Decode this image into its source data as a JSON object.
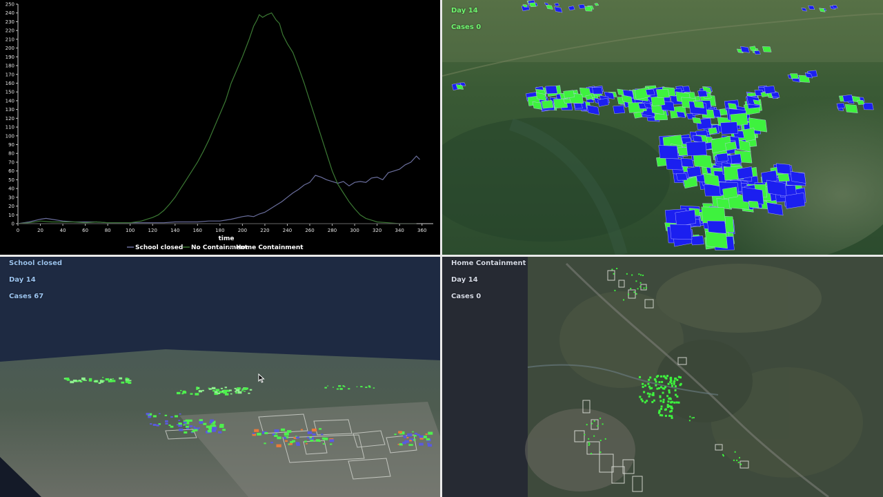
{
  "chart_data": {
    "type": "line",
    "xlabel": "time",
    "ylabel": "",
    "xlim": [
      0,
      370
    ],
    "ylim": [
      0,
      250
    ],
    "xticks": [
      0,
      20,
      40,
      60,
      80,
      100,
      120,
      140,
      160,
      180,
      200,
      220,
      240,
      260,
      280,
      300,
      320,
      340,
      360
    ],
    "yticks": [
      0,
      10,
      20,
      30,
      40,
      50,
      60,
      70,
      80,
      90,
      100,
      110,
      120,
      130,
      140,
      150,
      160,
      170,
      180,
      190,
      200,
      210,
      220,
      230,
      240,
      250
    ],
    "grid": false,
    "legend_position": "bottom",
    "series": [
      {
        "name": "School closed",
        "color": "#6b6f9e",
        "points": [
          [
            0,
            0
          ],
          [
            10,
            2
          ],
          [
            20,
            5
          ],
          [
            25,
            6
          ],
          [
            30,
            5
          ],
          [
            40,
            3
          ],
          [
            50,
            2
          ],
          [
            60,
            2
          ],
          [
            70,
            2
          ],
          [
            80,
            1
          ],
          [
            90,
            1
          ],
          [
            100,
            1
          ],
          [
            110,
            1
          ],
          [
            120,
            1
          ],
          [
            130,
            1
          ],
          [
            140,
            2
          ],
          [
            150,
            2
          ],
          [
            160,
            2
          ],
          [
            170,
            3
          ],
          [
            180,
            3
          ],
          [
            185,
            4
          ],
          [
            190,
            5
          ],
          [
            200,
            8
          ],
          [
            205,
            9
          ],
          [
            210,
            8
          ],
          [
            215,
            11
          ],
          [
            220,
            13
          ],
          [
            225,
            17
          ],
          [
            230,
            21
          ],
          [
            235,
            25
          ],
          [
            240,
            30
          ],
          [
            245,
            35
          ],
          [
            250,
            39
          ],
          [
            255,
            44
          ],
          [
            260,
            47
          ],
          [
            265,
            55
          ],
          [
            270,
            53
          ],
          [
            275,
            50
          ],
          [
            280,
            48
          ],
          [
            285,
            46
          ],
          [
            290,
            48
          ],
          [
            295,
            43
          ],
          [
            300,
            47
          ],
          [
            305,
            48
          ],
          [
            310,
            47
          ],
          [
            315,
            52
          ],
          [
            320,
            53
          ],
          [
            325,
            50
          ],
          [
            330,
            58
          ],
          [
            335,
            60
          ],
          [
            340,
            62
          ],
          [
            345,
            67
          ],
          [
            350,
            70
          ],
          [
            355,
            77
          ],
          [
            358,
            73
          ]
        ]
      },
      {
        "name": "No Containment",
        "color": "#3c7a34",
        "points": [
          [
            0,
            0
          ],
          [
            10,
            1
          ],
          [
            20,
            3
          ],
          [
            30,
            2
          ],
          [
            40,
            2
          ],
          [
            50,
            2
          ],
          [
            60,
            1
          ],
          [
            70,
            2
          ],
          [
            80,
            1
          ],
          [
            90,
            1
          ],
          [
            100,
            1
          ],
          [
            110,
            3
          ],
          [
            115,
            5
          ],
          [
            120,
            7
          ],
          [
            125,
            10
          ],
          [
            130,
            15
          ],
          [
            135,
            22
          ],
          [
            140,
            30
          ],
          [
            145,
            40
          ],
          [
            150,
            50
          ],
          [
            155,
            60
          ],
          [
            160,
            70
          ],
          [
            165,
            82
          ],
          [
            170,
            95
          ],
          [
            175,
            110
          ],
          [
            180,
            125
          ],
          [
            185,
            140
          ],
          [
            190,
            160
          ],
          [
            195,
            175
          ],
          [
            200,
            190
          ],
          [
            203,
            200
          ],
          [
            206,
            210
          ],
          [
            210,
            225
          ],
          [
            213,
            232
          ],
          [
            215,
            238
          ],
          [
            218,
            235
          ],
          [
            222,
            238
          ],
          [
            226,
            240
          ],
          [
            230,
            232
          ],
          [
            233,
            228
          ],
          [
            236,
            215
          ],
          [
            240,
            205
          ],
          [
            245,
            195
          ],
          [
            250,
            178
          ],
          [
            255,
            160
          ],
          [
            260,
            140
          ],
          [
            265,
            120
          ],
          [
            270,
            100
          ],
          [
            275,
            80
          ],
          [
            280,
            60
          ],
          [
            285,
            45
          ],
          [
            290,
            35
          ],
          [
            295,
            25
          ],
          [
            300,
            17
          ],
          [
            305,
            10
          ],
          [
            310,
            6
          ],
          [
            315,
            4
          ],
          [
            320,
            2
          ],
          [
            330,
            1
          ],
          [
            340,
            0
          ],
          [
            355,
            0
          ]
        ]
      },
      {
        "name": "Home Containment",
        "color": "#555555",
        "points": [
          [
            0,
            0
          ],
          [
            60,
            0
          ],
          [
            120,
            0
          ],
          [
            200,
            0
          ],
          [
            280,
            0
          ],
          [
            355,
            0
          ]
        ]
      }
    ]
  },
  "panels": {
    "top_right": {
      "day_label": "Day 14",
      "cases_label": "Cases 0"
    },
    "bottom_left": {
      "title": "School closed",
      "day_label": "Day 14",
      "cases_label": "Cases 67"
    },
    "bottom_right": {
      "title": "Home Containment",
      "day_label": "Day 14",
      "cases_label": "Cases 0"
    }
  }
}
